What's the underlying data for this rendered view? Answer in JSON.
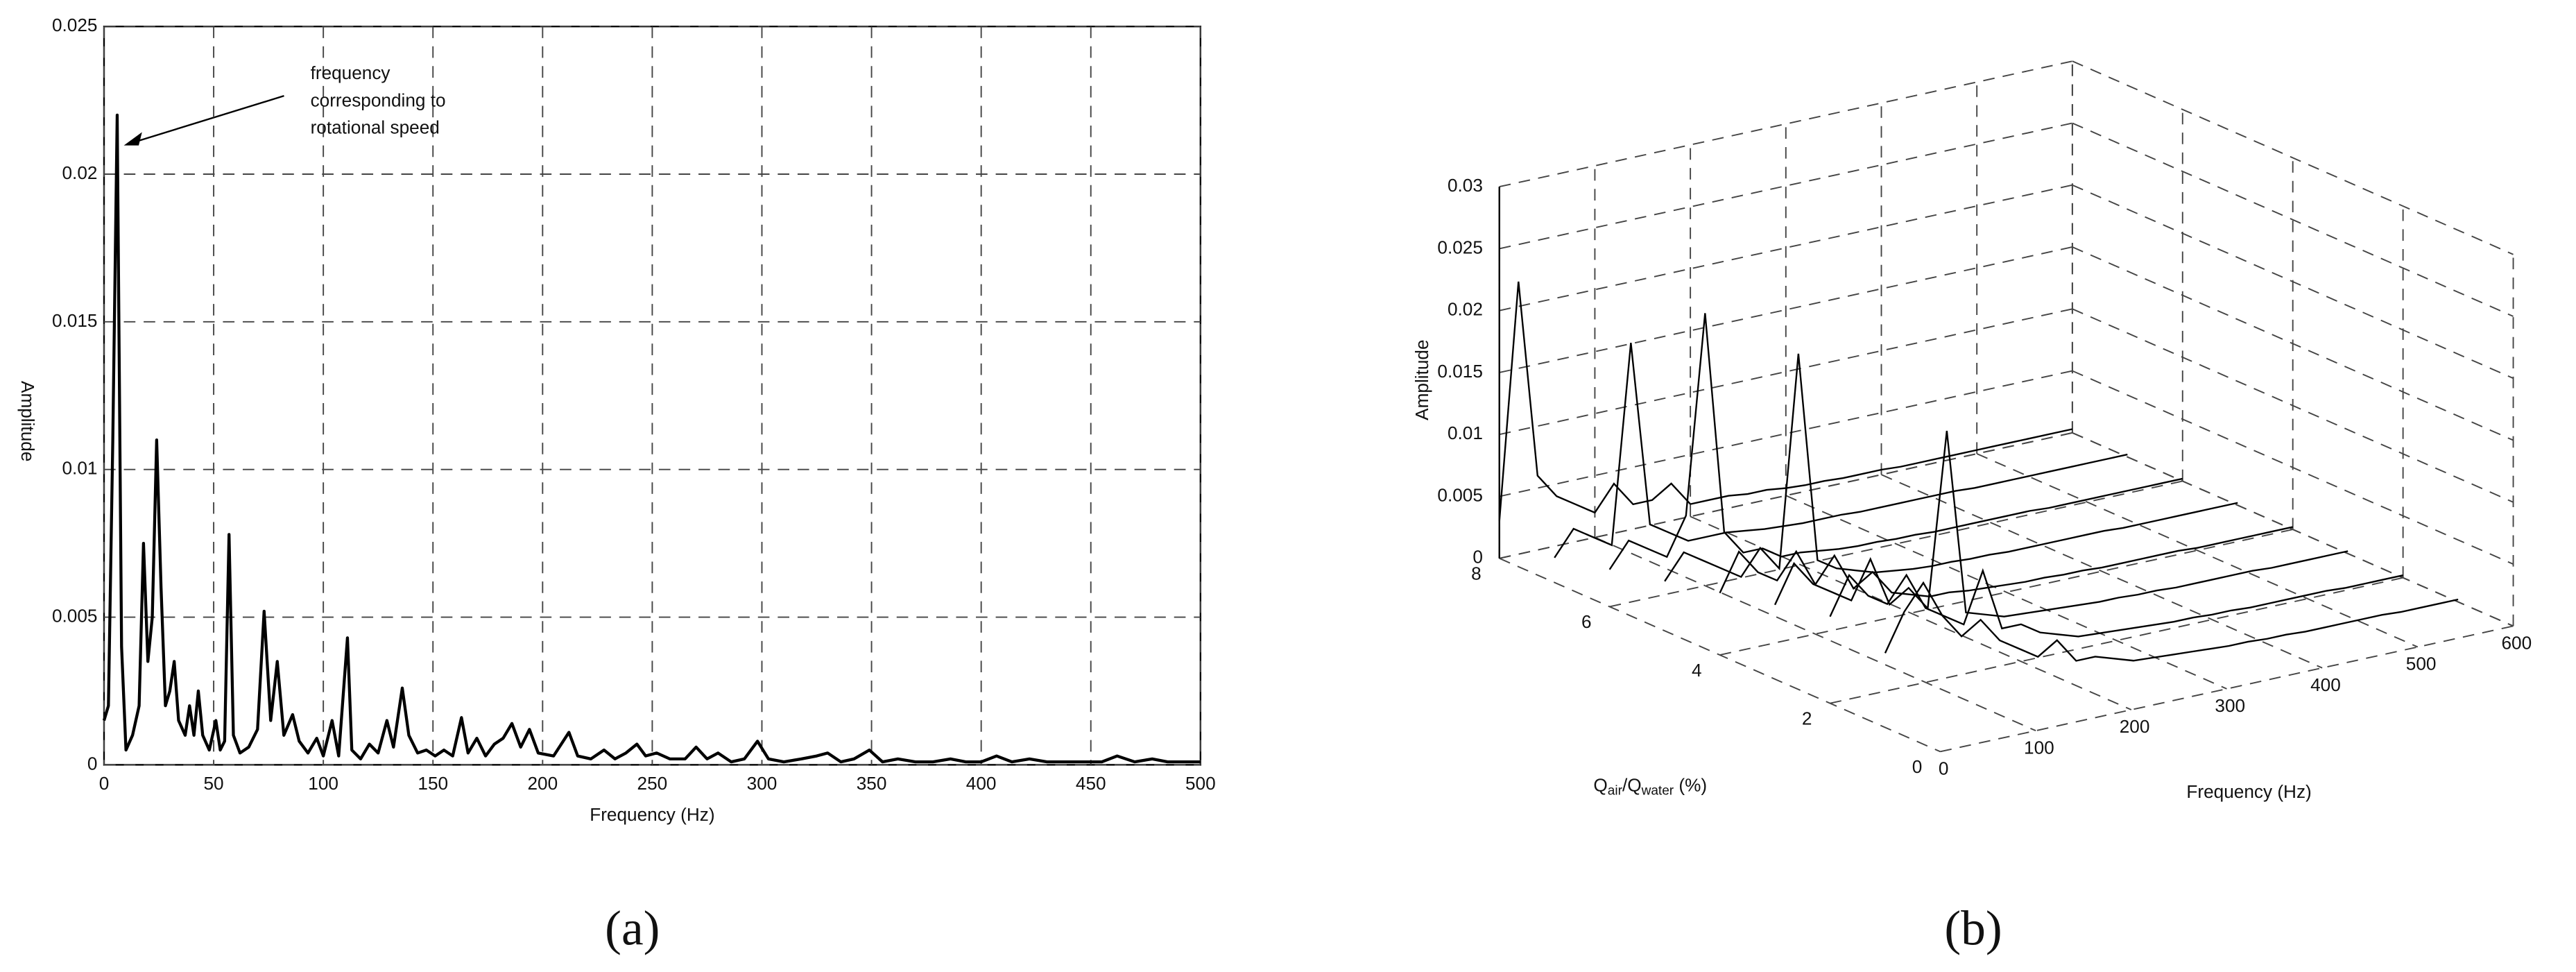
{
  "chart_data": [
    {
      "type": "line",
      "panel_label": "(a)",
      "xlabel": "Frequency (Hz)",
      "ylabel": "Amplitude",
      "annotation": [
        "frequency",
        "corresponding to",
        "rotational speed"
      ],
      "color": "#000000",
      "grid": true,
      "xlim": [
        0,
        500
      ],
      "ylim": [
        0,
        0.025
      ],
      "xticks": [
        0,
        50,
        100,
        150,
        200,
        250,
        300,
        350,
        400,
        450,
        500
      ],
      "yticks": [
        0,
        0.005,
        0.01,
        0.015,
        0.02,
        0.025
      ],
      "x": [
        0,
        2,
        4,
        6,
        8,
        10,
        13,
        16,
        18,
        20,
        22,
        24,
        26,
        28,
        30,
        32,
        34,
        37,
        39,
        41,
        43,
        45,
        48,
        51,
        53,
        55,
        57,
        59,
        62,
        66,
        70,
        73,
        76,
        79,
        82,
        86,
        89,
        93,
        97,
        100,
        104,
        107,
        111,
        113,
        117,
        121,
        125,
        129,
        132,
        136,
        139,
        143,
        147,
        151,
        155,
        159,
        163,
        166,
        170,
        174,
        178,
        182,
        186,
        190,
        194,
        198,
        205,
        212,
        216,
        222,
        228,
        233,
        238,
        243,
        247,
        252,
        258,
        265,
        270,
        275,
        280,
        286,
        292,
        298,
        303,
        310,
        318,
        325,
        330,
        336,
        342,
        349,
        355,
        362,
        370,
        378,
        386,
        393,
        400,
        407,
        414,
        422,
        430,
        438,
        446,
        455,
        462,
        470,
        478,
        485,
        492,
        500
      ],
      "values": [
        0.0015,
        0.002,
        0.011,
        0.022,
        0.004,
        0.0005,
        0.001,
        0.002,
        0.0075,
        0.0035,
        0.005,
        0.011,
        0.006,
        0.002,
        0.0025,
        0.0035,
        0.0015,
        0.001,
        0.002,
        0.001,
        0.0025,
        0.001,
        0.0005,
        0.0015,
        0.0005,
        0.0008,
        0.0078,
        0.001,
        0.0004,
        0.0006,
        0.0012,
        0.0052,
        0.0015,
        0.0035,
        0.001,
        0.0017,
        0.0008,
        0.0004,
        0.0009,
        0.0003,
        0.0015,
        0.0003,
        0.0043,
        0.0005,
        0.0002,
        0.0007,
        0.0004,
        0.0015,
        0.0006,
        0.0026,
        0.001,
        0.0004,
        0.0005,
        0.0003,
        0.0005,
        0.0003,
        0.0016,
        0.0004,
        0.0009,
        0.0003,
        0.0007,
        0.0009,
        0.0014,
        0.0006,
        0.0012,
        0.0004,
        0.0003,
        0.0011,
        0.0003,
        0.0002,
        0.0005,
        0.0002,
        0.0004,
        0.0007,
        0.0003,
        0.0004,
        0.0002,
        0.0002,
        0.0006,
        0.0002,
        0.0004,
        0.0001,
        0.0002,
        0.0008,
        0.0002,
        0.0001,
        0.0002,
        0.0003,
        0.0004,
        0.0001,
        0.0002,
        0.0005,
        0.0001,
        0.0002,
        0.0001,
        0.0001,
        0.0002,
        0.0001,
        0.0001,
        0.0003,
        0.0001,
        0.0002,
        0.0001,
        0.0001,
        0.0001,
        0.0001,
        0.0003,
        0.0001,
        0.0002,
        0.0001,
        0.0001,
        0.0001
      ]
    },
    {
      "type": "waterfall",
      "panel_label": "(b)",
      "xlabel": "Frequency (Hz)",
      "ylabel": [
        "Q",
        "air",
        "/Q",
        "water",
        " (%)"
      ],
      "zlabel": "Amplitude",
      "color": "#000000",
      "grid": true,
      "xlim": [
        0,
        600
      ],
      "ylim": [
        0,
        8
      ],
      "zlim": [
        0,
        0.03
      ],
      "xticks": [
        0,
        100,
        200,
        300,
        400,
        500,
        600
      ],
      "yticks": [
        0,
        2,
        4,
        6,
        8
      ],
      "zticks": [
        0,
        0.005,
        0.01,
        0.015,
        0.02,
        0.025,
        0.03
      ],
      "x": [
        0,
        20,
        40,
        60,
        80,
        100,
        120,
        140,
        160,
        180,
        200,
        220,
        240,
        260,
        280,
        300,
        320,
        340,
        360,
        380,
        400,
        420,
        440,
        460,
        480,
        500,
        520,
        540,
        560,
        580,
        600
      ],
      "series": [
        {
          "y": 8,
          "values": [
            0.003,
            0.022,
            0.006,
            0.004,
            0.003,
            0.002,
            0.004,
            0.002,
            0.002,
            0.003,
            0.001,
            0.001,
            0.001,
            0.0008,
            0.0008,
            0.0006,
            0.0005,
            0.0005,
            0.0004,
            0.0004,
            0.0004,
            0.0003,
            0.0003,
            0.0003,
            0.0003,
            0.0003,
            0.0003,
            0.0003,
            0.0003,
            0.0003,
            0.0003
          ]
        },
        {
          "y": 7,
          "values": [
            0.002,
            0.004,
            0.003,
            0.002,
            0.018,
            0.003,
            0.002,
            0.001,
            0.001,
            0.001,
            0.0008,
            0.0006,
            0.0005,
            0.0004,
            0.0004,
            0.0004,
            0.0003,
            0.0003,
            0.0003,
            0.0003,
            0.0003,
            0.0003,
            0.0002,
            0.0002,
            0.0002,
            0.0002,
            0.0002,
            0.0002,
            0.0002,
            0.0002,
            0.0002
          ]
        },
        {
          "y": 6,
          "values": [
            0.003,
            0.005,
            0.004,
            0.003,
            0.006,
            0.022,
            0.004,
            0.002,
            0.002,
            0.001,
            0.001,
            0.0008,
            0.0006,
            0.0005,
            0.0005,
            0.0004,
            0.0004,
            0.0003,
            0.0003,
            0.0003,
            0.0003,
            0.0003,
            0.0003,
            0.0002,
            0.0002,
            0.0002,
            0.0002,
            0.0002,
            0.0002,
            0.0002,
            0.0002
          ]
        },
        {
          "y": 5,
          "values": [
            0.004,
            0.006,
            0.005,
            0.004,
            0.003,
            0.005,
            0.003,
            0.02,
            0.003,
            0.002,
            0.0015,
            0.001,
            0.0008,
            0.0006,
            0.0005,
            0.0005,
            0.0004,
            0.0004,
            0.0003,
            0.0003,
            0.0003,
            0.0003,
            0.0003,
            0.0003,
            0.0002,
            0.0002,
            0.0002,
            0.0002,
            0.0002,
            0.0002,
            0.0002
          ]
        },
        {
          "y": 4,
          "values": [
            0.005,
            0.008,
            0.006,
            0.005,
            0.007,
            0.004,
            0.006,
            0.003,
            0.004,
            0.002,
            0.0015,
            0.001,
            0.001,
            0.0008,
            0.0007,
            0.0006,
            0.0005,
            0.0005,
            0.0004,
            0.0004,
            0.0003,
            0.0003,
            0.0003,
            0.0003,
            0.0003,
            0.0002,
            0.0002,
            0.0002,
            0.0002,
            0.0002,
            0.0002
          ]
        },
        {
          "y": 3,
          "values": [
            0.006,
            0.009,
            0.007,
            0.006,
            0.005,
            0.008,
            0.004,
            0.005,
            0.003,
            0.017,
            0.002,
            0.0015,
            0.001,
            0.0009,
            0.0008,
            0.0007,
            0.0006,
            0.0005,
            0.0005,
            0.0004,
            0.0004,
            0.0003,
            0.0003,
            0.0003,
            0.0003,
            0.0003,
            0.0002,
            0.0002,
            0.0002,
            0.0002,
            0.0002
          ]
        },
        {
          "y": 2,
          "values": [
            0.007,
            0.01,
            0.008,
            0.007,
            0.009,
            0.006,
            0.005,
            0.004,
            0.008,
            0.003,
            0.003,
            0.002,
            0.0015,
            0.001,
            0.0009,
            0.0008,
            0.0007,
            0.0006,
            0.0005,
            0.0005,
            0.0004,
            0.0004,
            0.0003,
            0.0003,
            0.0003,
            0.0003,
            0.0003,
            0.0002,
            0.0002,
            0.0002,
            0.0002
          ]
        },
        {
          "y": 1,
          "values": [
            0.006,
            0.009,
            0.011,
            0.008,
            0.006,
            0.007,
            0.005,
            0.004,
            0.003,
            0.004,
            0.002,
            0.002,
            0.0015,
            0.001,
            0.0009,
            0.0008,
            0.0007,
            0.0006,
            0.0005,
            0.0005,
            0.0004,
            0.0004,
            0.0003,
            0.0003,
            0.0003,
            0.0003,
            0.0003,
            0.0002,
            0.0002,
            0.0002,
            0.0002
          ]
        }
      ]
    }
  ]
}
